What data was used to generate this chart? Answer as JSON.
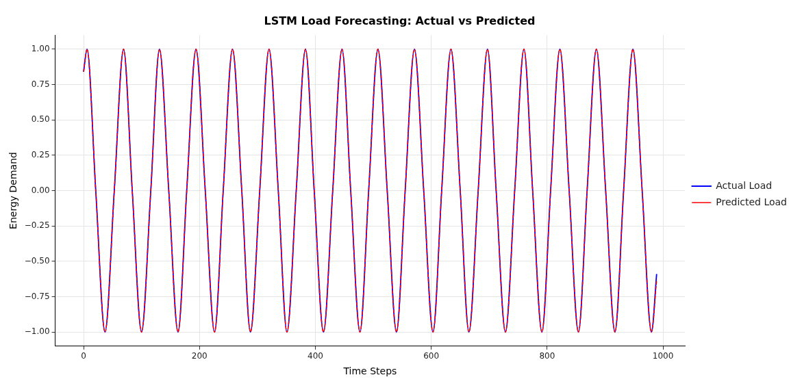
{
  "chart_data": {
    "type": "line",
    "title": "LSTM Load Forecasting: Actual vs Predicted",
    "xlabel": "Time Steps",
    "ylabel": "Energy Demand",
    "series": [
      {
        "name": "Actual Load",
        "color": "#0000ff",
        "line_style": "solid",
        "x": [
          0,
          6,
          21,
          37,
          53,
          69,
          84,
          100,
          116,
          131,
          147,
          163,
          178,
          194,
          210,
          226,
          241,
          257,
          273,
          288,
          304,
          320,
          336,
          351,
          367,
          383,
          398,
          414,
          430,
          446,
          461,
          477,
          492,
          508,
          524,
          540,
          555,
          571,
          587,
          603,
          618,
          634,
          650,
          665,
          681,
          697,
          712,
          728,
          744,
          760,
          775,
          791,
          806,
          822,
          838,
          854,
          869,
          885,
          901,
          917,
          932,
          948,
          964,
          980,
          989
        ],
        "values": [
          0.84,
          1,
          0,
          -1,
          0,
          1,
          0,
          -1,
          0,
          1,
          0,
          -1,
          0,
          1,
          0,
          -1,
          0,
          1,
          0,
          -1,
          0,
          1,
          0,
          -1,
          0,
          1,
          0,
          -1,
          0,
          1,
          0,
          -1,
          0,
          1,
          0,
          -1,
          0,
          1,
          0,
          -1,
          0,
          1,
          0,
          -1,
          0,
          1,
          0,
          -1,
          0,
          1,
          0,
          -1,
          0,
          1,
          0,
          -1,
          0,
          1,
          0,
          -1,
          0,
          1,
          0,
          -1,
          -0.59
        ]
      },
      {
        "name": "Predicted Load",
        "color": "#ff0000",
        "line_style": "dashed",
        "x": [
          0,
          6,
          21,
          37,
          53,
          69,
          84,
          100,
          116,
          131,
          147,
          163,
          178,
          194,
          210,
          226,
          241,
          257,
          273,
          288,
          304,
          320,
          336,
          351,
          367,
          383,
          398,
          414,
          430,
          446,
          461,
          477,
          492,
          508,
          524,
          540,
          555,
          571,
          587,
          603,
          618,
          634,
          650,
          665,
          681,
          697,
          712,
          728,
          744,
          760,
          775,
          791,
          806,
          822,
          838,
          854,
          869,
          885,
          901,
          917,
          932,
          948,
          964,
          980,
          989
        ],
        "values": [
          0.84,
          1,
          0,
          -1,
          0,
          1,
          0,
          -1,
          0,
          1,
          0,
          -1,
          0,
          1,
          0,
          -1,
          0,
          1,
          0,
          -1,
          0,
          1,
          0,
          -1,
          0,
          1,
          0,
          -1,
          0,
          1,
          0,
          -1,
          0,
          1,
          0,
          -1,
          0,
          1,
          0,
          -1,
          0,
          1,
          0,
          -1,
          0,
          1,
          0,
          -1,
          0,
          1,
          0,
          -1,
          0,
          1,
          0,
          -1,
          0,
          1,
          0,
          -1,
          0,
          1,
          0,
          -1,
          -0.63
        ]
      }
    ],
    "xlim": [
      -49,
      1038
    ],
    "xticks": [
      0,
      200,
      400,
      600,
      800,
      1000
    ],
    "ylim": [
      -1.1,
      1.1
    ],
    "yticks": [
      {
        "value": -1,
        "label": "−1.00"
      },
      {
        "value": -0.75,
        "label": "−0.75"
      },
      {
        "value": -0.5,
        "label": "−0.50"
      },
      {
        "value": -0.25,
        "label": "−0.25"
      },
      {
        "value": 0,
        "label": "0.00"
      },
      {
        "value": 0.25,
        "label": "0.25"
      },
      {
        "value": 0.5,
        "label": "0.50"
      },
      {
        "value": 0.75,
        "label": "0.75"
      },
      {
        "value": 1,
        "label": "1.00"
      }
    ],
    "grid": true,
    "legend": "right",
    "marker": "none"
  }
}
